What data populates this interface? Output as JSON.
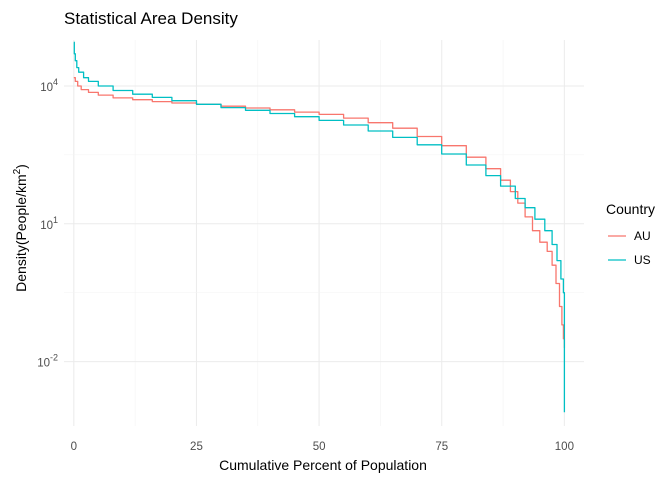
{
  "chart_data": {
    "type": "line",
    "title": "Statistical Area Density",
    "xlabel": "Cumulative Percent of Population",
    "ylabel_parts": [
      "Density(People/km",
      "2",
      ")"
    ],
    "x_ticks": [
      0,
      25,
      50,
      75,
      100
    ],
    "x_tick_labels": [
      "0",
      "25",
      "50",
      "75",
      "100"
    ],
    "xlim": [
      -2,
      104
    ],
    "y_scale": "log10",
    "y_ticks_exponent": [
      4,
      1,
      -2
    ],
    "y_tick_labels": [
      {
        "base": "10",
        "exp": "4"
      },
      {
        "base": "10",
        "exp": "1"
      },
      {
        "base": "10",
        "exp": "-2"
      }
    ],
    "ylim_log10": [
      -3.4,
      5.0
    ],
    "grid": true,
    "legend": {
      "title": "Country",
      "position": "right",
      "entries": [
        "AU",
        "US"
      ]
    },
    "series": [
      {
        "name": "AU",
        "color": "#F8766D",
        "x": [
          0,
          0.3,
          0.8,
          1.5,
          3,
          5,
          8,
          12,
          16,
          20,
          25,
          30,
          35,
          40,
          45,
          50,
          55,
          60,
          65,
          70,
          75,
          80,
          84,
          87,
          89,
          90.5,
          92,
          93.5,
          95,
          96.5,
          97.5,
          98.3,
          99,
          99.5,
          99.8,
          100
        ],
        "y_log10": [
          4.18,
          4.1,
          4.0,
          3.92,
          3.86,
          3.8,
          3.74,
          3.7,
          3.66,
          3.63,
          3.6,
          3.56,
          3.52,
          3.48,
          3.43,
          3.38,
          3.3,
          3.2,
          3.08,
          2.9,
          2.7,
          2.45,
          2.2,
          1.95,
          1.7,
          1.45,
          1.15,
          0.85,
          0.6,
          0.4,
          0.1,
          -0.3,
          -0.8,
          -1.2,
          -1.5,
          -1.7
        ]
      },
      {
        "name": "US",
        "color": "#00BFC4",
        "x": [
          0,
          0.1,
          0.3,
          0.6,
          1,
          2,
          3,
          5,
          8,
          12,
          16,
          20,
          25,
          30,
          35,
          40,
          45,
          50,
          55,
          60,
          65,
          70,
          75,
          80,
          84,
          87,
          90,
          92,
          94,
          96,
          97.5,
          98.5,
          99.3,
          99.8,
          100,
          100,
          100
        ],
        "y_log10": [
          4.95,
          4.7,
          4.55,
          4.4,
          4.3,
          4.18,
          4.1,
          4.0,
          3.9,
          3.82,
          3.75,
          3.68,
          3.6,
          3.53,
          3.47,
          3.4,
          3.33,
          3.25,
          3.15,
          3.02,
          2.88,
          2.72,
          2.52,
          2.28,
          2.05,
          1.82,
          1.55,
          1.35,
          1.1,
          0.85,
          0.55,
          0.2,
          -0.2,
          -0.5,
          -0.8,
          -2.0,
          -3.1
        ]
      }
    ]
  }
}
